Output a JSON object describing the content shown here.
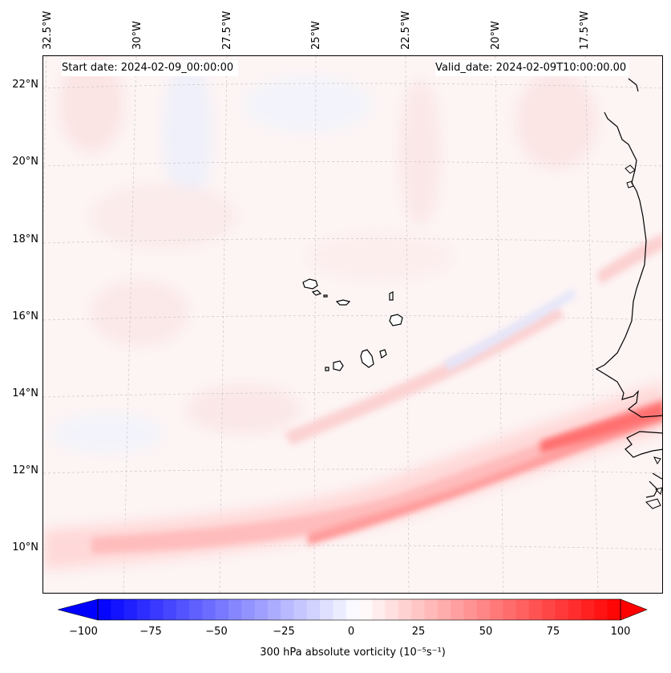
{
  "header": {
    "start_date": "Start date: 2024-02-09_00:00:00",
    "valid_date": "Valid_date: 2024-02-09T10:00:00.00"
  },
  "lat_labels": [
    "22°N",
    "20°N",
    "18°N",
    "16°N",
    "14°N",
    "12°N",
    "10°N"
  ],
  "lon_labels": [
    "32.5°W",
    "30°W",
    "27.5°W",
    "25°W",
    "22.5°W",
    "20°W",
    "17.5°W"
  ],
  "colorbar": {
    "ticks": [
      "−100",
      "−75",
      "−50",
      "−25",
      "0",
      "25",
      "50",
      "75",
      "100"
    ],
    "label": "300 hPa absolute vorticity (10⁻⁵s⁻¹)",
    "min": -100,
    "max": 100,
    "low_color": "#0000ff",
    "high_color": "#ff0000"
  },
  "islands": [
    "Santo Antão",
    "São Vicente",
    "Santa Luzia",
    "São Nicolau",
    "Sal",
    "Boa Vista",
    "Maio",
    "Santiago",
    "Fogo",
    "Brava"
  ]
}
